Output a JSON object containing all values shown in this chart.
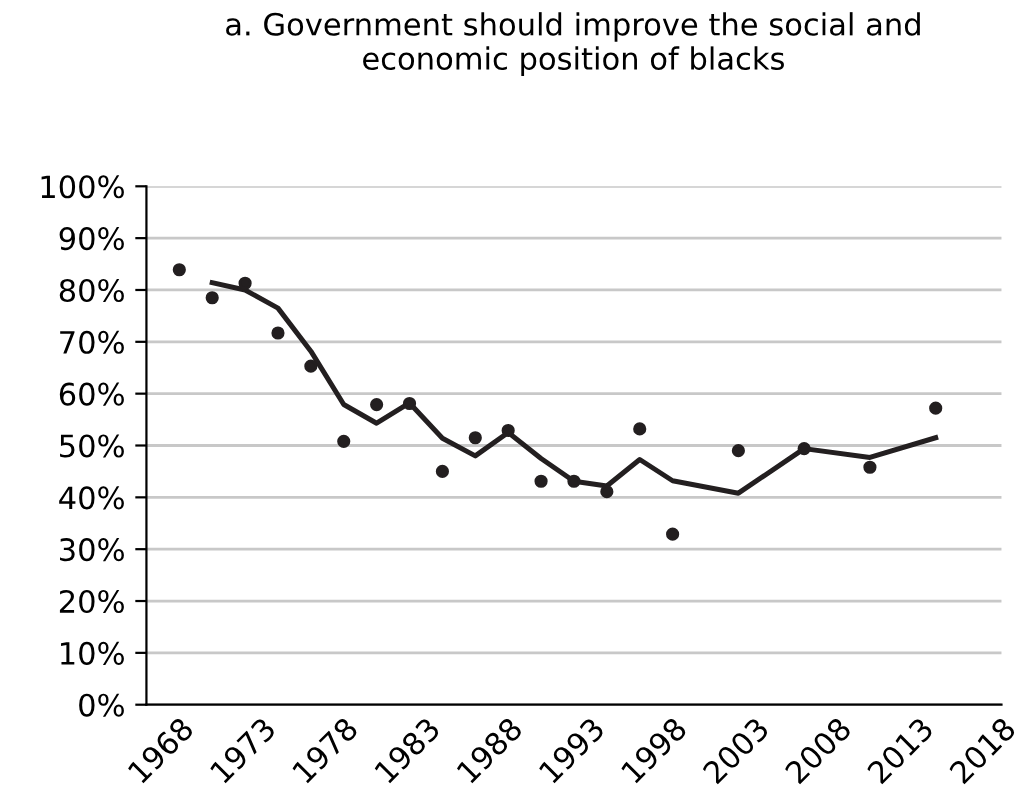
{
  "chart_data": {
    "type": "scatter",
    "title": "a. Government should improve the social and\neconomic position of blacks",
    "series": [
      {
        "color": "#231f20",
        "marker": "circle",
        "x": [
          1968,
          1970,
          1972,
          1974,
          1976,
          1978,
          1980,
          1982,
          1984,
          1986,
          1988,
          1990,
          1992,
          1994,
          1996,
          1998,
          2002,
          2006,
          2010,
          2014
        ],
        "values": [
          83.9,
          78.5,
          81.3,
          71.7,
          65.3,
          50.8,
          57.9,
          58.1,
          45.0,
          51.5,
          52.9,
          43.1,
          43.1,
          41.1,
          53.2,
          32.9,
          49.0,
          49.4,
          45.8,
          57.2
        ]
      },
      {
        "type": "line",
        "color": "#231f20",
        "marker": "none",
        "x": [
          1970,
          1972,
          1974,
          1976,
          1978,
          1980,
          1982,
          1984,
          1986,
          1988,
          1990,
          1992,
          1994,
          1996,
          1998,
          2002,
          2006,
          2010,
          2014
        ],
        "values": [
          81.4,
          80.0,
          76.5,
          68.2,
          57.9,
          54.3,
          58.2,
          51.4,
          48.0,
          52.5,
          47.5,
          43.1,
          42.2,
          47.3,
          43.2,
          40.8,
          49.4,
          47.7,
          51.5
        ]
      }
    ],
    "xlim": [
      1966,
      2018
    ],
    "xticks": [
      1968,
      1973,
      1978,
      1983,
      1988,
      1993,
      1998,
      2003,
      2008,
      2013,
      2018
    ],
    "ylim": [
      0,
      100
    ],
    "yticks": [
      {
        "value": 0,
        "label": "0%"
      },
      {
        "value": 10,
        "label": "10%"
      },
      {
        "value": 20,
        "label": "20%"
      },
      {
        "value": 30,
        "label": "30%"
      },
      {
        "value": 40,
        "label": "40%"
      },
      {
        "value": 50,
        "label": "50%"
      },
      {
        "value": 60,
        "label": "60%"
      },
      {
        "value": 70,
        "label": "70%"
      },
      {
        "value": 80,
        "label": "80%"
      },
      {
        "value": 90,
        "label": "90%"
      },
      {
        "value": 100,
        "label": "100%"
      }
    ],
    "grid": "y"
  }
}
